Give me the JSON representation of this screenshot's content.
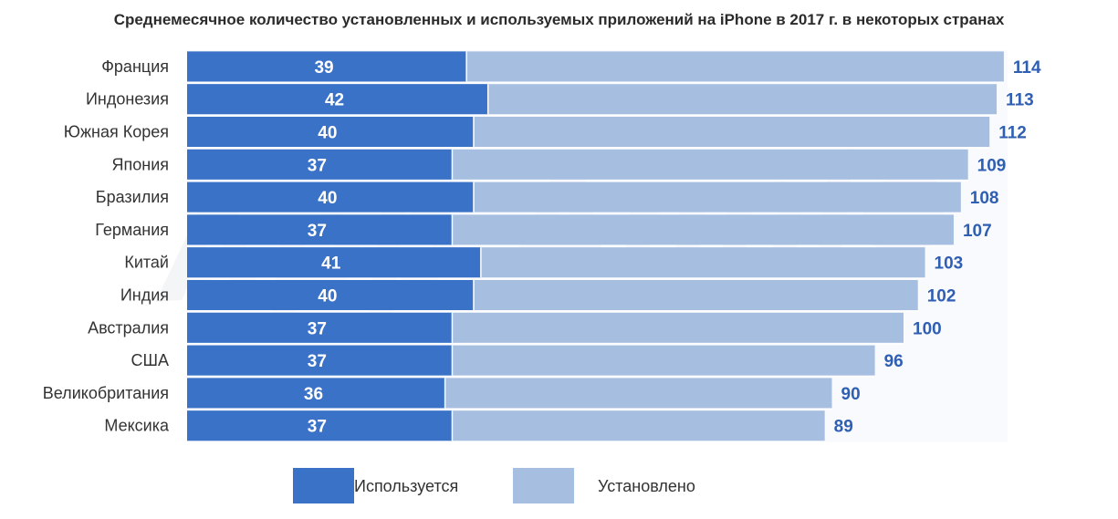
{
  "chart_data": {
    "type": "bar",
    "orientation": "horizontal",
    "stacking": "overlay",
    "title": "Среднемесячное количество установленных и используемых приложений на iPhone в 2017 г. в некоторых странах",
    "categories": [
      "Франция",
      "Индонезия",
      "Южная Корея",
      "Япония",
      "Бразилия",
      "Германия",
      "Китай",
      "Индия",
      "Австралия",
      "США",
      "Великобритания",
      "Мексика"
    ],
    "series": [
      {
        "name": "Используется",
        "color": "#3a72c8",
        "values": [
          39,
          42,
          40,
          37,
          40,
          37,
          41,
          40,
          37,
          37,
          36,
          37
        ]
      },
      {
        "name": "Установлено",
        "color": "#a6bfe0",
        "values": [
          114,
          113,
          112,
          109,
          108,
          107,
          103,
          102,
          100,
          96,
          90,
          89
        ]
      }
    ],
    "xlim": [
      0,
      114
    ],
    "legend_position": "bottom-center",
    "grid": false,
    "label_color": "#2f5fb3",
    "watermark": "App Annie"
  }
}
